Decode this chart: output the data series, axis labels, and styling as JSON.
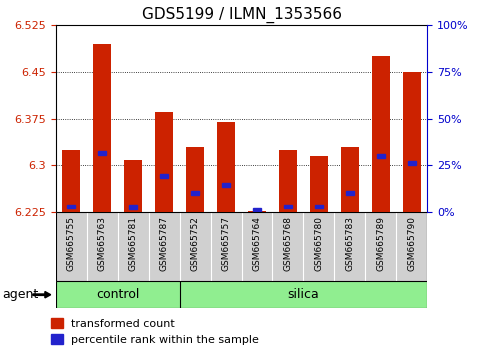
{
  "title": "GDS5199 / ILMN_1353566",
  "samples": [
    "GSM665755",
    "GSM665763",
    "GSM665781",
    "GSM665787",
    "GSM665752",
    "GSM665757",
    "GSM665764",
    "GSM665768",
    "GSM665780",
    "GSM665783",
    "GSM665789",
    "GSM665790"
  ],
  "groups": [
    "control",
    "control",
    "control",
    "control",
    "silica",
    "silica",
    "silica",
    "silica",
    "silica",
    "silica",
    "silica",
    "silica"
  ],
  "red_values": [
    6.325,
    6.495,
    6.308,
    6.385,
    6.33,
    6.37,
    6.228,
    6.325,
    6.315,
    6.33,
    6.475,
    6.45
  ],
  "blue_values": [
    6.234,
    6.32,
    6.233,
    6.283,
    6.255,
    6.268,
    6.2285,
    6.234,
    6.234,
    6.255,
    6.315,
    6.303
  ],
  "base": 6.225,
  "ylim": [
    6.225,
    6.525
  ],
  "yticks": [
    6.225,
    6.3,
    6.375,
    6.45,
    6.525
  ],
  "right_yticks": [
    0,
    25,
    50,
    75,
    100
  ],
  "bar_color": "#cc2200",
  "blue_color": "#2222cc",
  "green_color": "#90EE90",
  "grey_cell_color": "#d0d0d0",
  "control_count": 4,
  "silica_count": 8,
  "legend_red": "transformed count",
  "legend_blue": "percentile rank within the sample",
  "agent_label": "agent",
  "left_axis_color": "#cc2200",
  "right_axis_color": "#0000cc",
  "bar_width": 0.6
}
